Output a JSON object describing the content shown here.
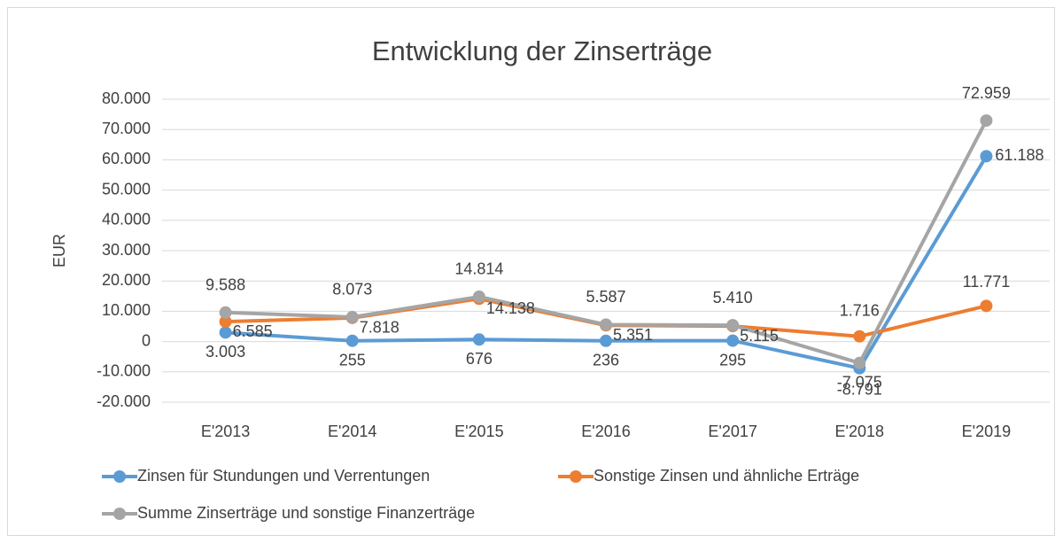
{
  "chart_data": {
    "type": "line",
    "title": "Entwicklung der Zinserträge",
    "ylabel": "EUR",
    "categories": [
      "E'2013",
      "E'2014",
      "E'2015",
      "E'2016",
      "E'2017",
      "E'2018",
      "E'2019"
    ],
    "series": [
      {
        "name": "Zinsen für Stundungen und Verrentungen",
        "color": "#5b9bd5",
        "values": [
          3003,
          255,
          676,
          236,
          295,
          -8791,
          61188
        ],
        "value_labels": [
          "3.003",
          "255",
          "676",
          "236",
          "295",
          "-8.791",
          "61.188"
        ]
      },
      {
        "name": "Sonstige Zinsen und ähnliche Erträge",
        "color": "#ed7d31",
        "values": [
          6585,
          7818,
          14138,
          5351,
          5115,
          1716,
          11771
        ],
        "value_labels": [
          "6.585",
          "7.818",
          "14.138",
          "5.351",
          "5.115",
          "1.716",
          "11.771"
        ]
      },
      {
        "name": "Summe Zinserträge und sonstige Finanzerträge",
        "color": "#a5a5a5",
        "values": [
          9588,
          8073,
          14814,
          5587,
          5410,
          -7075,
          72959
        ],
        "value_labels": [
          "9.588",
          "8.073",
          "14.814",
          "5.587",
          "5.410",
          "-7.075",
          "72.959"
        ]
      }
    ],
    "ylim": [
      -20000,
      80000
    ],
    "yticks": [
      {
        "value": -20000,
        "label": "-20.000"
      },
      {
        "value": -10000,
        "label": "-10.000"
      },
      0,
      {
        "value": 10000,
        "label": "10.000"
      },
      {
        "value": 20000,
        "label": "20.000"
      },
      {
        "value": 30000,
        "label": "30.000"
      },
      {
        "value": 40000,
        "label": "40.000"
      },
      {
        "value": 50000,
        "label": "50.000"
      },
      {
        "value": 60000,
        "label": "60.000"
      },
      {
        "value": 70000,
        "label": "70.000"
      },
      {
        "value": 80000,
        "label": "80.000"
      }
    ],
    "grid": true,
    "legend": "bottom"
  }
}
